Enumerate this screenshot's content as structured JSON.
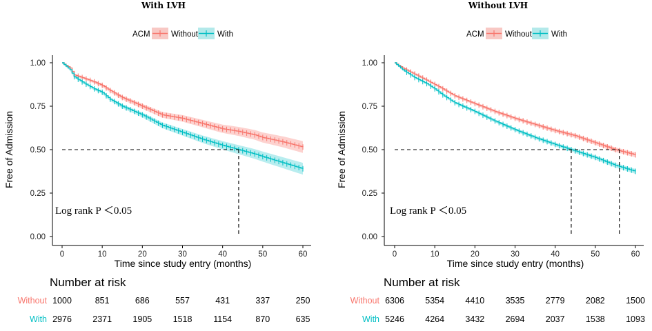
{
  "chart_data": [
    {
      "type": "line",
      "subtype": "kaplan-meier",
      "title": "With LVH",
      "xlabel": "Time since study entry (months)",
      "ylabel": "Free of Admission",
      "xlim": [
        0,
        60
      ],
      "ylim": [
        0,
        1
      ],
      "xticks": [
        "0",
        "10",
        "20",
        "30",
        "40",
        "50",
        "60"
      ],
      "yticks": [
        "0.00",
        "0.25",
        "0.50",
        "0.75",
        "1.00"
      ],
      "legend": {
        "title": "ACM",
        "items": [
          "Without",
          "With"
        ],
        "position": "top"
      },
      "annotation": "Log rank P ＜0.05",
      "median_lines": [
        44
      ],
      "series": [
        {
          "name": "Without",
          "color": "#f8766d",
          "x": [
            0,
            2,
            3,
            5,
            8,
            10,
            12,
            15,
            18,
            20,
            25,
            30,
            35,
            40,
            44,
            48,
            50,
            55,
            60
          ],
          "y": [
            1.0,
            0.97,
            0.93,
            0.915,
            0.89,
            0.87,
            0.84,
            0.8,
            0.77,
            0.75,
            0.7,
            0.68,
            0.65,
            0.62,
            0.605,
            0.585,
            0.57,
            0.545,
            0.515
          ]
        },
        {
          "name": "With",
          "color": "#00bfc4",
          "x": [
            0,
            2,
            3,
            5,
            8,
            10,
            12,
            15,
            18,
            20,
            25,
            30,
            35,
            40,
            44,
            48,
            50,
            55,
            60
          ],
          "y": [
            1.0,
            0.96,
            0.92,
            0.89,
            0.85,
            0.83,
            0.79,
            0.75,
            0.72,
            0.7,
            0.64,
            0.6,
            0.56,
            0.525,
            0.5,
            0.475,
            0.46,
            0.425,
            0.39
          ]
        }
      ],
      "risk_table": {
        "title": "Number at risk",
        "times": [
          0,
          10,
          20,
          30,
          40,
          50,
          60
        ],
        "rows": [
          {
            "label": "Without",
            "values": [
              "1000",
              "851",
              "686",
              "557",
              "431",
              "337",
              "250"
            ]
          },
          {
            "label": "With",
            "values": [
              "2976",
              "2371",
              "1905",
              "1518",
              "1154",
              "870",
              "635"
            ]
          }
        ]
      }
    },
    {
      "type": "line",
      "subtype": "kaplan-meier",
      "title": "Without LVH",
      "xlabel": "Time since study entry (months)",
      "ylabel": "Free of Admission",
      "xlim": [
        0,
        60
      ],
      "ylim": [
        0,
        1
      ],
      "xticks": [
        "0",
        "10",
        "20",
        "30",
        "40",
        "50",
        "60"
      ],
      "yticks": [
        "0.00",
        "0.25",
        "0.50",
        "0.75",
        "1.00"
      ],
      "legend": {
        "title": "ACM",
        "items": [
          "Without",
          "With"
        ],
        "position": "top"
      },
      "annotation": "Log rank P ＜0.05",
      "median_lines": [
        44,
        56
      ],
      "series": [
        {
          "name": "Without",
          "color": "#f8766d",
          "x": [
            0,
            2,
            5,
            8,
            10,
            12,
            15,
            20,
            25,
            30,
            35,
            40,
            45,
            50,
            55,
            60
          ],
          "y": [
            1.0,
            0.97,
            0.935,
            0.9,
            0.875,
            0.85,
            0.81,
            0.765,
            0.72,
            0.68,
            0.645,
            0.61,
            0.58,
            0.54,
            0.5,
            0.47
          ]
        },
        {
          "name": "With",
          "color": "#00bfc4",
          "x": [
            0,
            2,
            5,
            8,
            10,
            12,
            15,
            20,
            25,
            30,
            35,
            40,
            44,
            50,
            55,
            60
          ],
          "y": [
            1.0,
            0.96,
            0.915,
            0.88,
            0.85,
            0.815,
            0.77,
            0.72,
            0.665,
            0.615,
            0.57,
            0.53,
            0.5,
            0.455,
            0.41,
            0.375
          ]
        }
      ],
      "risk_table": {
        "title": "Number at risk",
        "times": [
          0,
          10,
          20,
          30,
          40,
          50,
          60
        ],
        "rows": [
          {
            "label": "Without",
            "values": [
              "6306",
              "5354",
              "4410",
              "3535",
              "2779",
              "2082",
              "1500"
            ]
          },
          {
            "label": "With",
            "values": [
              "5246",
              "4264",
              "3432",
              "2694",
              "2037",
              "1538",
              "1093"
            ]
          }
        ]
      }
    }
  ]
}
